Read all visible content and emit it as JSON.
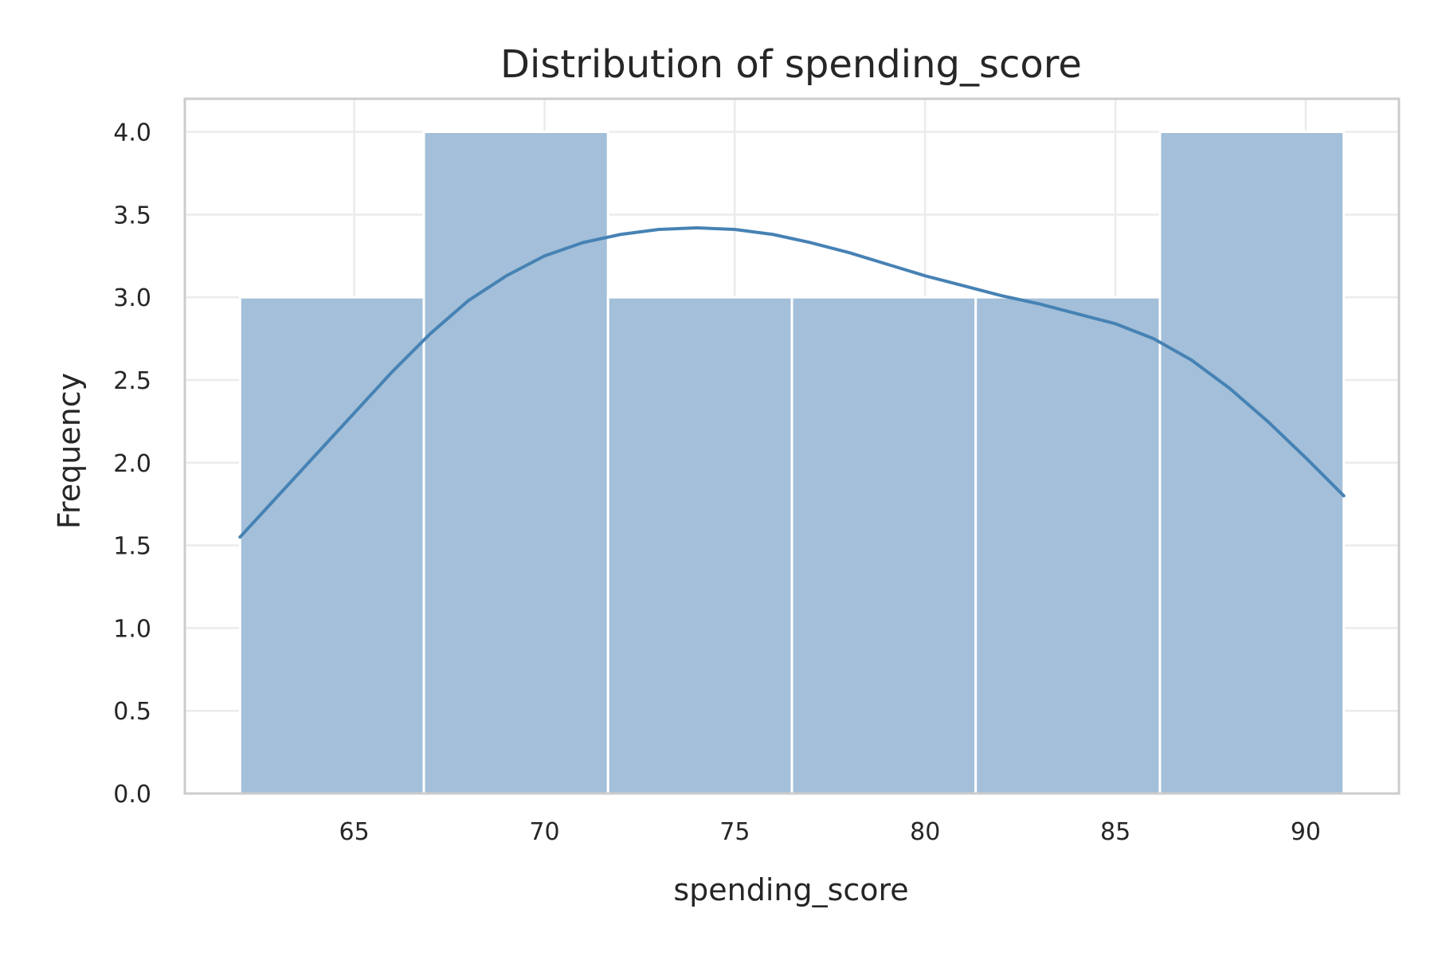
{
  "chart_data": {
    "type": "histogram",
    "title": "Distribution of spending_score",
    "xlabel": "spending_score",
    "ylabel": "Frequency",
    "xlim": [
      60.55,
      92.45
    ],
    "ylim": [
      0,
      4.2
    ],
    "x_ticks": [
      65,
      70,
      75,
      80,
      85,
      90
    ],
    "x_tick_labels": [
      "65",
      "70",
      "75",
      "80",
      "85",
      "90"
    ],
    "y_ticks": [
      0.0,
      0.5,
      1.0,
      1.5,
      2.0,
      2.5,
      3.0,
      3.5,
      4.0
    ],
    "y_tick_labels": [
      "0.0",
      "0.5",
      "1.0",
      "1.5",
      "2.0",
      "2.5",
      "3.0",
      "3.5",
      "4.0"
    ],
    "bins": [
      {
        "x0": 62.0,
        "x1": 66.83,
        "count": 3
      },
      {
        "x0": 66.83,
        "x1": 71.67,
        "count": 4
      },
      {
        "x0": 71.67,
        "x1": 76.5,
        "count": 3
      },
      {
        "x0": 76.5,
        "x1": 81.33,
        "count": 3
      },
      {
        "x0": 81.33,
        "x1": 86.17,
        "count": 3
      },
      {
        "x0": 86.17,
        "x1": 91.0,
        "count": 4
      }
    ],
    "kde": {
      "x": [
        62,
        63,
        64,
        65,
        66,
        67,
        68,
        69,
        70,
        71,
        72,
        73,
        74,
        75,
        76,
        77,
        78,
        79,
        80,
        81,
        82,
        83,
        84,
        85,
        86,
        87,
        88,
        89,
        90,
        91
      ],
      "y": [
        1.55,
        1.8,
        2.05,
        2.3,
        2.55,
        2.78,
        2.98,
        3.13,
        3.25,
        3.33,
        3.38,
        3.41,
        3.42,
        3.41,
        3.38,
        3.33,
        3.27,
        3.2,
        3.13,
        3.07,
        3.01,
        2.96,
        2.9,
        2.84,
        2.75,
        2.62,
        2.45,
        2.25,
        2.03,
        1.8
      ]
    },
    "grid": true,
    "colors": {
      "bar_fill": "#a3bfd9",
      "kde_line": "#4682b4",
      "grid": "#ebebeb",
      "frame": "#cccccc",
      "bar_edge": "#ffffff"
    }
  }
}
